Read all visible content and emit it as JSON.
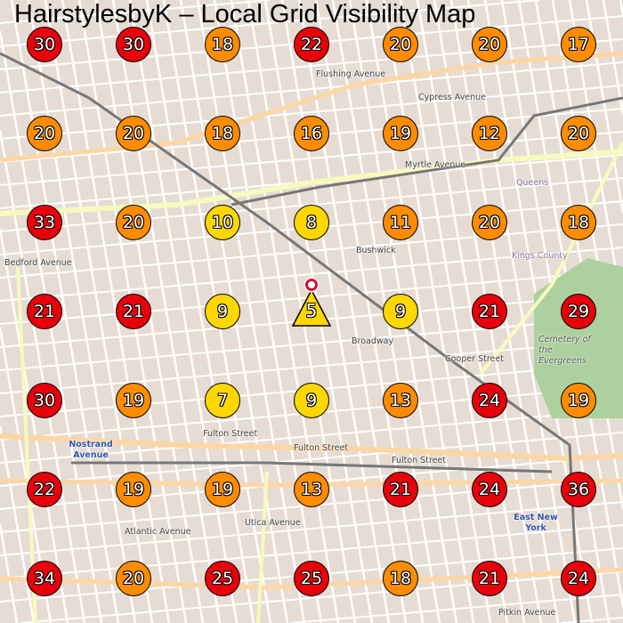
{
  "title": "HairstylesbyK – Local Grid Visibility Map",
  "colors": {
    "red": "#e8000b",
    "orange": "#ff8c00",
    "yellow": "#ffd700",
    "location": "#d4103a"
  },
  "legend_thresholds": {
    "yellow_max": 10,
    "orange_max": 20
  },
  "grid": [
    [
      30,
      30,
      18,
      22,
      20,
      20,
      17
    ],
    [
      20,
      20,
      18,
      16,
      19,
      12,
      20
    ],
    [
      33,
      20,
      10,
      8,
      11,
      20,
      18
    ],
    [
      21,
      21,
      9,
      5,
      9,
      21,
      29
    ],
    [
      30,
      19,
      7,
      9,
      13,
      24,
      19
    ],
    [
      22,
      19,
      19,
      13,
      21,
      24,
      36
    ],
    [
      34,
      20,
      25,
      25,
      18,
      21,
      24
    ]
  ],
  "business_cell": {
    "row": 3,
    "col": 3
  },
  "map_labels": [
    {
      "text": "Flushing Avenue",
      "color": "#444"
    },
    {
      "text": "Cypress Avenue",
      "color": "#444"
    },
    {
      "text": "Myrtle Avenue",
      "color": "#444"
    },
    {
      "text": "Fulton Street",
      "color": "#444"
    },
    {
      "text": "Fulton Street",
      "color": "#444"
    },
    {
      "text": "Fulton Street",
      "color": "#444"
    },
    {
      "text": "Nostrand Avenue",
      "color": "#3355aa"
    },
    {
      "text": "Bushwick",
      "color": "#444"
    },
    {
      "text": "Broadway",
      "color": "#444"
    },
    {
      "text": "Queens",
      "color": "#8a7aa8"
    },
    {
      "text": "Kings County",
      "color": "#8a7aa8"
    },
    {
      "text": "Cemetery of the Evergreens",
      "color": "#555"
    },
    {
      "text": "Bedford Avenue",
      "color": "#444"
    },
    {
      "text": "Utica Avenue",
      "color": "#444"
    },
    {
      "text": "Cooper Street",
      "color": "#444"
    },
    {
      "text": "East New York",
      "color": "#3355aa"
    },
    {
      "text": "Pitkin Avenue",
      "color": "#444"
    },
    {
      "text": "Atlantic Avenue",
      "color": "#444"
    }
  ]
}
